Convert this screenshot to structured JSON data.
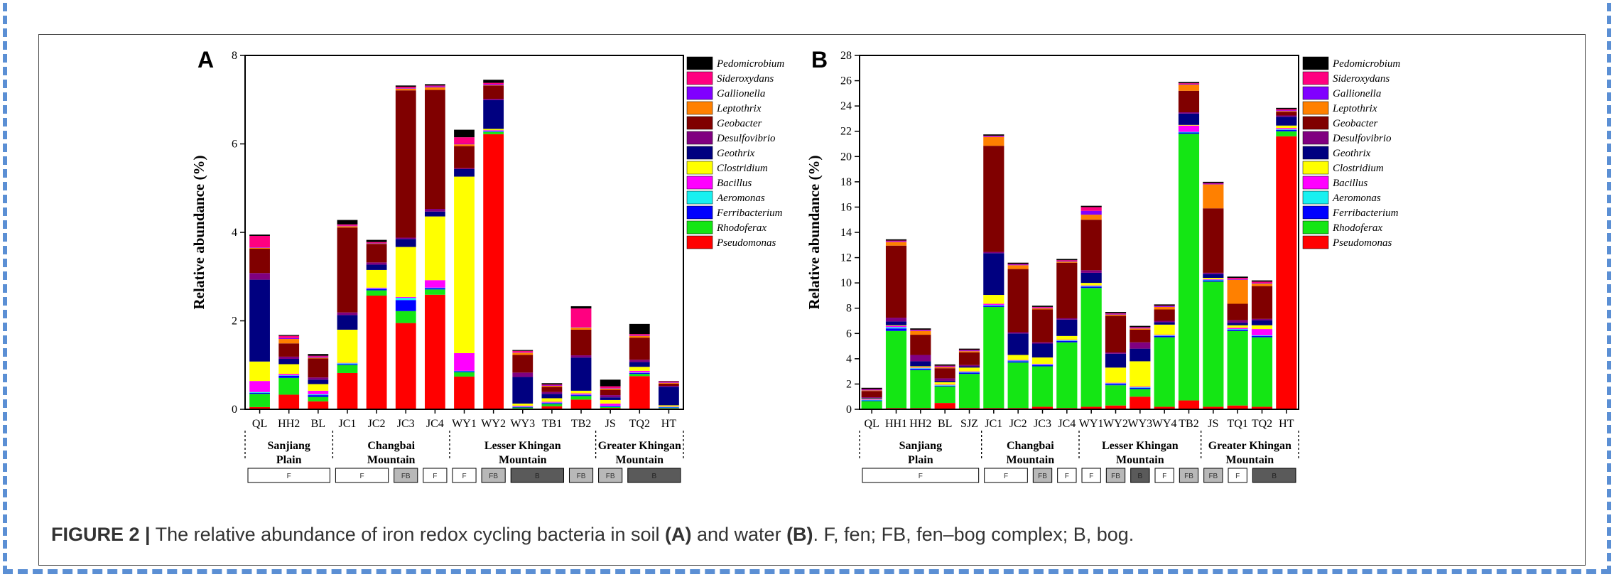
{
  "caption": {
    "label": "FIGURE 2 |",
    "pre": " The relative abundance of iron redox cycling bacteria in soil ",
    "a": "(A)",
    "mid": " and water ",
    "b": "(B)",
    "post": ". F, fen; FB, fen–bog complex; B, bog."
  },
  "colors": {
    "Pseudomonas": "#ff0000",
    "Rhodoferax": "#14e614",
    "Ferribacterium": "#0000ff",
    "Aeromonas": "#19f0f0",
    "Bacillus": "#ff00ff",
    "Clostridium": "#ffff00",
    "Geothrix": "#000080",
    "Desulfovibrio": "#800080",
    "Geobacter": "#800000",
    "Leptothrix": "#ff8000",
    "Gallionella": "#8000ff",
    "Sideroxydans": "#ff0080",
    "Pedomicrobium": "#000000"
  },
  "chart_data": [
    {
      "panel": "A",
      "type": "bar",
      "stacked": true,
      "ylabel": "Relative abundance (%)",
      "ylim": [
        0,
        8
      ],
      "yticks": [
        0,
        2,
        4,
        6,
        8
      ],
      "categories": [
        "QL",
        "HH2",
        "BL",
        "JC1",
        "JC2",
        "JC3",
        "JC4",
        "WY1",
        "WY2",
        "WY3",
        "TB1",
        "TB2",
        "JS",
        "TQ2",
        "HT"
      ],
      "regions": [
        {
          "name": [
            "Sanjiang",
            "Plain"
          ],
          "from": 0,
          "to": 2
        },
        {
          "name": [
            "Changbai",
            "Mountain"
          ],
          "from": 3,
          "to": 6
        },
        {
          "name": [
            "Lesser Khingan",
            "Mountain"
          ],
          "from": 7,
          "to": 11
        },
        {
          "name": [
            "Greater Khingan",
            "Mountain"
          ],
          "from": 12,
          "to": 14
        }
      ],
      "types": [
        {
          "label": "F",
          "from": 0,
          "to": 2
        },
        {
          "label": "F",
          "from": 3,
          "to": 4
        },
        {
          "label": "FB",
          "from": 5,
          "to": 5
        },
        {
          "label": "F",
          "from": 6,
          "to": 6
        },
        {
          "label": "F",
          "from": 7,
          "to": 7
        },
        {
          "label": "FB",
          "from": 8,
          "to": 8
        },
        {
          "label": "B",
          "from": 9,
          "to": 10
        },
        {
          "label": "FB",
          "from": 11,
          "to": 11
        },
        {
          "label": "FB",
          "from": 12,
          "to": 12
        },
        {
          "label": "B",
          "from": 13,
          "to": 14
        }
      ],
      "legend_position": "right",
      "series": [
        {
          "name": "Pseudomonas",
          "values": [
            0.05,
            0.33,
            0.18,
            0.82,
            2.57,
            1.95,
            2.59,
            0.74,
            6.22,
            0.02,
            0.07,
            0.22,
            0.03,
            0.75,
            0.02
          ]
        },
        {
          "name": "Rhodoferax",
          "values": [
            0.3,
            0.38,
            0.1,
            0.18,
            0.12,
            0.27,
            0.12,
            0.1,
            0.05,
            0.02,
            0.05,
            0.08,
            0.02,
            0.05,
            0.01
          ]
        },
        {
          "name": "Ferribacterium",
          "values": [
            0.02,
            0.05,
            0.04,
            0.02,
            0.03,
            0.25,
            0.03,
            0.02,
            0.01,
            0.01,
            0.02,
            0.02,
            0.02,
            0.02,
            0.01
          ]
        },
        {
          "name": "Aeromonas",
          "values": [
            0.02,
            0.01,
            0.02,
            0.02,
            0.01,
            0.05,
            0.01,
            0.01,
            0.01,
            0.01,
            0.01,
            0.01,
            0.01,
            0.01,
            0.01
          ]
        },
        {
          "name": "Bacillus",
          "values": [
            0.25,
            0.03,
            0.08,
            0.01,
            0.02,
            0.02,
            0.17,
            0.4,
            0.02,
            0.02,
            0.02,
            0.03,
            0.05,
            0.04,
            0.01
          ]
        },
        {
          "name": "Clostridium",
          "values": [
            0.44,
            0.22,
            0.15,
            0.75,
            0.4,
            1.13,
            1.44,
            3.99,
            0.03,
            0.05,
            0.08,
            0.06,
            0.08,
            0.09,
            0.03
          ]
        },
        {
          "name": "Geothrix",
          "values": [
            1.85,
            0.12,
            0.1,
            0.33,
            0.12,
            0.18,
            0.11,
            0.17,
            0.65,
            0.6,
            0.1,
            0.75,
            0.06,
            0.11,
            0.42
          ]
        },
        {
          "name": "Desulfovibrio",
          "values": [
            0.15,
            0.05,
            0.05,
            0.06,
            0.05,
            0.03,
            0.06,
            0.02,
            0.03,
            0.1,
            0.04,
            0.05,
            0.05,
            0.05,
            0.02
          ]
        },
        {
          "name": "Geobacter",
          "values": [
            0.55,
            0.3,
            0.43,
            1.92,
            0.42,
            3.33,
            2.69,
            0.5,
            0.3,
            0.4,
            0.12,
            0.58,
            0.12,
            0.5,
            0.05
          ]
        },
        {
          "name": "Leptothrix",
          "values": [
            0.02,
            0.1,
            0.02,
            0.03,
            0.01,
            0.04,
            0.06,
            0.04,
            0.01,
            0.05,
            0.02,
            0.05,
            0.03,
            0.04,
            0.02
          ]
        },
        {
          "name": "Gallionella",
          "values": [
            0.01,
            0.02,
            0.02,
            0.01,
            0.01,
            0.01,
            0.02,
            0.01,
            0.02,
            0.01,
            0.01,
            0.01,
            0.01,
            0.01,
            0.01
          ]
        },
        {
          "name": "Sideroxydans",
          "values": [
            0.26,
            0.05,
            0.02,
            0.03,
            0.02,
            0.03,
            0.02,
            0.15,
            0.03,
            0.03,
            0.02,
            0.42,
            0.04,
            0.03,
            0.02
          ]
        },
        {
          "name": "Pedomicrobium",
          "values": [
            0.03,
            0.02,
            0.04,
            0.1,
            0.05,
            0.03,
            0.03,
            0.17,
            0.07,
            0.02,
            0.03,
            0.05,
            0.15,
            0.23,
            0.01
          ]
        }
      ]
    },
    {
      "panel": "B",
      "type": "bar",
      "stacked": true,
      "ylabel": "Relative abundance (%)",
      "ylim": [
        0,
        28
      ],
      "yticks": [
        0,
        2,
        4,
        6,
        8,
        10,
        12,
        14,
        16,
        18,
        20,
        22,
        24,
        26,
        28
      ],
      "categories": [
        "QL",
        "HH1",
        "HH2",
        "BL",
        "SJZ",
        "JC1",
        "JC2",
        "JC3",
        "JC4",
        "WY1",
        "WY2",
        "WY3",
        "WY4",
        "TB2",
        "JS",
        "TQ1",
        "TQ2",
        "HT"
      ],
      "regions": [
        {
          "name": [
            "Sanjiang",
            "Plain"
          ],
          "from": 0,
          "to": 4
        },
        {
          "name": [
            "Changbai",
            "Mountain"
          ],
          "from": 5,
          "to": 8
        },
        {
          "name": [
            "Lesser Khingan",
            "Mountain"
          ],
          "from": 9,
          "to": 13
        },
        {
          "name": [
            "Greater Khingan",
            "Mountain"
          ],
          "from": 14,
          "to": 17
        }
      ],
      "types": [
        {
          "label": "F",
          "from": 0,
          "to": 4
        },
        {
          "label": "F",
          "from": 5,
          "to": 6
        },
        {
          "label": "FB",
          "from": 7,
          "to": 7
        },
        {
          "label": "F",
          "from": 8,
          "to": 8
        },
        {
          "label": "F",
          "from": 9,
          "to": 9
        },
        {
          "label": "FB",
          "from": 10,
          "to": 10
        },
        {
          "label": "B",
          "from": 11,
          "to": 11
        },
        {
          "label": "F",
          "from": 12,
          "to": 12
        },
        {
          "label": "FB",
          "from": 13,
          "to": 13
        },
        {
          "label": "FB",
          "from": 14,
          "to": 14
        },
        {
          "label": "F",
          "from": 15,
          "to": 15
        },
        {
          "label": "B",
          "from": 16,
          "to": 17
        }
      ],
      "legend_position": "right",
      "series": [
        {
          "name": "Pseudomonas",
          "values": [
            0.05,
            0.1,
            0.1,
            0.5,
            0.1,
            0.1,
            0.1,
            0.2,
            0.1,
            0.2,
            0.3,
            1.0,
            0.2,
            0.7,
            0.2,
            0.3,
            0.2,
            21.6
          ]
        },
        {
          "name": "Rhodoferax",
          "values": [
            0.6,
            6.1,
            3.0,
            1.3,
            2.7,
            8.0,
            3.6,
            3.2,
            5.2,
            9.4,
            1.6,
            0.6,
            5.5,
            21.1,
            9.9,
            5.9,
            5.5,
            0.4
          ]
        },
        {
          "name": "Ferribacterium",
          "values": [
            0.05,
            0.2,
            0.1,
            0.05,
            0.1,
            0.1,
            0.1,
            0.1,
            0.1,
            0.1,
            0.1,
            0.1,
            0.1,
            0.1,
            0.1,
            0.1,
            0.1,
            0.1
          ]
        },
        {
          "name": "Aeromonas",
          "values": [
            0.05,
            0.1,
            0.05,
            0.05,
            0.05,
            0.05,
            0.05,
            0.05,
            0.05,
            0.05,
            0.05,
            0.05,
            0.05,
            0.05,
            0.05,
            0.05,
            0.05,
            0.05
          ]
        },
        {
          "name": "Bacillus",
          "values": [
            0.05,
            0.1,
            0.05,
            0.05,
            0.05,
            0.1,
            0.05,
            0.05,
            0.05,
            0.05,
            0.05,
            0.05,
            0.05,
            0.5,
            0.05,
            0.1,
            0.5,
            0.1
          ]
        },
        {
          "name": "Clostridium",
          "values": [
            0.05,
            0.05,
            0.1,
            0.2,
            0.3,
            0.7,
            0.4,
            0.5,
            0.3,
            0.2,
            1.2,
            2.0,
            0.8,
            0.05,
            0.1,
            0.2,
            0.3,
            0.2
          ]
        },
        {
          "name": "Geothrix",
          "values": [
            0.05,
            0.3,
            0.4,
            0.1,
            0.1,
            3.3,
            1.7,
            1.1,
            1.3,
            0.8,
            1.1,
            1.0,
            0.2,
            0.9,
            0.3,
            0.2,
            0.4,
            0.7
          ]
        },
        {
          "name": "Desulfovibrio",
          "values": [
            0.05,
            0.3,
            0.5,
            0.2,
            0.1,
            0.1,
            0.1,
            0.1,
            0.1,
            0.2,
            0.1,
            0.5,
            0.1,
            0.1,
            0.1,
            0.2,
            0.1,
            0.1
          ]
        },
        {
          "name": "Geobacter",
          "values": [
            0.5,
            5.7,
            1.6,
            0.8,
            1.0,
            8.4,
            5.0,
            2.6,
            4.4,
            4.0,
            2.9,
            1.0,
            0.9,
            1.7,
            5.1,
            1.3,
            2.6,
            0.3
          ]
        },
        {
          "name": "Leptothrix",
          "values": [
            0.05,
            0.3,
            0.3,
            0.1,
            0.1,
            0.7,
            0.3,
            0.1,
            0.1,
            0.4,
            0.1,
            0.1,
            0.2,
            0.5,
            1.9,
            1.9,
            0.2,
            0.05
          ]
        },
        {
          "name": "Gallionella",
          "values": [
            0.05,
            0.05,
            0.05,
            0.05,
            0.05,
            0.05,
            0.05,
            0.05,
            0.05,
            0.3,
            0.05,
            0.05,
            0.05,
            0.05,
            0.05,
            0.05,
            0.05,
            0.05
          ]
        },
        {
          "name": "Sideroxydans",
          "values": [
            0.05,
            0.05,
            0.05,
            0.05,
            0.05,
            0.05,
            0.05,
            0.05,
            0.05,
            0.3,
            0.05,
            0.05,
            0.05,
            0.05,
            0.05,
            0.1,
            0.1,
            0.1
          ]
        },
        {
          "name": "Pedomicrobium",
          "values": [
            0.1,
            0.1,
            0.1,
            0.1,
            0.1,
            0.1,
            0.1,
            0.1,
            0.1,
            0.1,
            0.1,
            0.1,
            0.1,
            0.1,
            0.1,
            0.1,
            0.1,
            0.1
          ]
        }
      ]
    }
  ]
}
